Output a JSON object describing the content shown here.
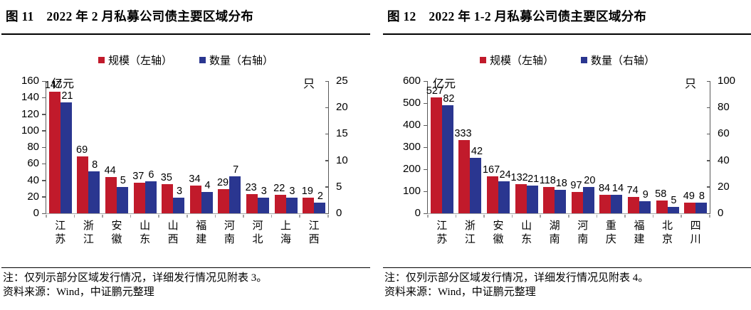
{
  "colors": {
    "scale_red": "#c11a2b",
    "count_blue": "#2a3690",
    "axis_gray": "#595959",
    "baseline_gray": "#a6a6a6"
  },
  "panels": [
    {
      "title": "图 11　2022 年 2 月私募公司债主要区域分布",
      "note1": "注：仅列示部分区域发行情况，详细发行情况见附表 3。",
      "note2": "资料来源：Wind，中证鹏元整理"
    },
    {
      "title": "图 12　2022 年 1-2 月私募公司债主要区域分布",
      "note1": "注：仅列示部分区域发行情况，详细发行情况见附表 4。",
      "note2": "资料来源：Wind，中证鹏元整理"
    }
  ],
  "chart_data": [
    {
      "type": "bar",
      "title": "图 11 2022 年 2 月私募公司债主要区域分布",
      "categories": [
        "江苏",
        "浙江",
        "安徽",
        "山东",
        "山西",
        "福建",
        "河南",
        "河北",
        "上海",
        "江西"
      ],
      "series": [
        {
          "name": "规模（左轴）",
          "axis": "left",
          "color": "#c11a2b",
          "values": [
            147,
            69,
            44,
            37,
            35,
            34,
            29,
            23,
            22,
            19
          ]
        },
        {
          "name": "数量（右轴）",
          "axis": "right",
          "color": "#2a3690",
          "values": [
            21,
            8,
            5,
            6,
            3,
            4,
            7,
            3,
            3,
            2
          ]
        }
      ],
      "left_axis": {
        "unit": "亿元",
        "min": 0,
        "max": 160,
        "step": 20
      },
      "right_axis": {
        "unit": "只",
        "min": 0,
        "max": 25,
        "step": 5
      },
      "legend_position": "top",
      "grid": false
    },
    {
      "type": "bar",
      "title": "图 12 2022 年 1-2 月私募公司债主要区域分布",
      "categories": [
        "江苏",
        "浙江",
        "安徽",
        "山东",
        "湖南",
        "河南",
        "重庆",
        "福建",
        "北京",
        "四川"
      ],
      "series": [
        {
          "name": "规模（左轴）",
          "axis": "left",
          "color": "#c11a2b",
          "values": [
            527,
            333,
            167,
            132,
            118,
            97,
            84,
            74,
            58,
            49
          ]
        },
        {
          "name": "数量（右轴）",
          "axis": "right",
          "color": "#2a3690",
          "values": [
            82,
            42,
            24,
            21,
            18,
            20,
            14,
            9,
            5,
            8
          ]
        }
      ],
      "left_axis": {
        "unit": "亿元",
        "min": 0,
        "max": 600,
        "step": 100
      },
      "right_axis": {
        "unit": "只",
        "min": 0,
        "max": 100,
        "step": 20
      },
      "legend_position": "top",
      "grid": false
    }
  ]
}
